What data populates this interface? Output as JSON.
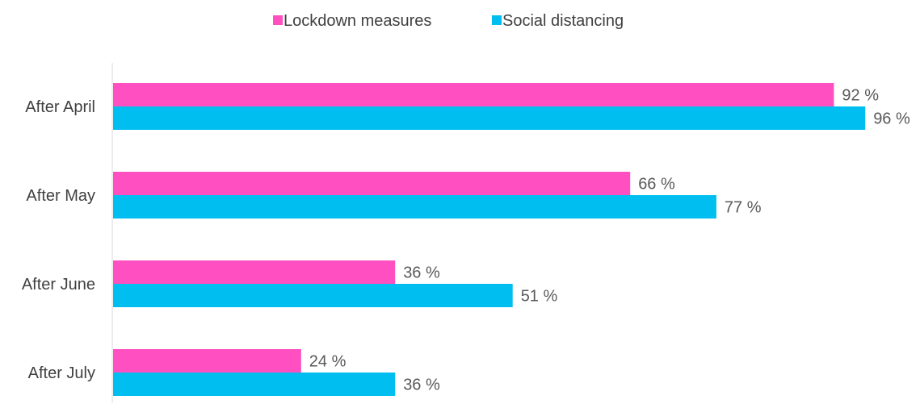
{
  "chart_data": {
    "type": "bar",
    "orientation": "horizontal",
    "categories": [
      "After April",
      "After May",
      "After June",
      "After July"
    ],
    "series": [
      {
        "name": "Lockdown measures",
        "color": "#ff4fc1",
        "values": [
          92,
          66,
          36,
          24
        ]
      },
      {
        "name": "Social distancing",
        "color": "#00bff0",
        "values": [
          96,
          77,
          51,
          36
        ]
      }
    ],
    "value_suffix": " %",
    "xlim": [
      0,
      100
    ],
    "grid": false,
    "legend_position": "top-center"
  }
}
